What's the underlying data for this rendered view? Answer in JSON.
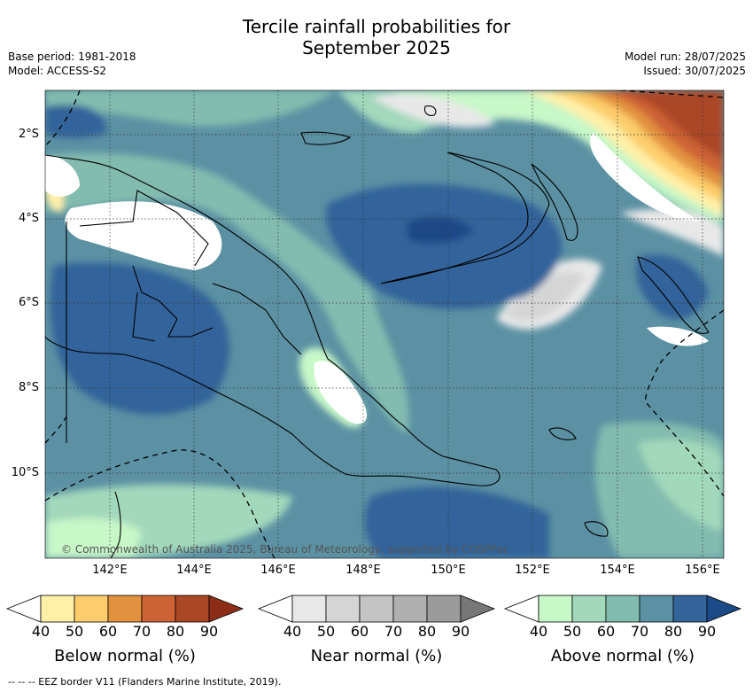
{
  "title_line1": "Tercile rainfall probabilities for",
  "title_line2": "September 2025",
  "base_period": "Base period: 1981-2018",
  "model": "Model: ACCESS-S2",
  "model_run": "Model run: 28/07/2025",
  "issued": "Issued: 30/07/2025",
  "copyright": "© Commonwealth of Australia 2025, Bureau of Meteorology, supported by COSPPac",
  "footer": "--  --  -- EEZ border V11 (Flanders Marine Institute, 2019).",
  "lat_labels": [
    "2°S",
    "4°S",
    "6°S",
    "8°S",
    "10°S"
  ],
  "lon_labels": [
    "142°E",
    "144°E",
    "146°E",
    "148°E",
    "150°E",
    "152°E",
    "154°E",
    "156°E"
  ],
  "colorbars": [
    {
      "label": "Below normal (%)",
      "ticks": [
        "40",
        "50",
        "60",
        "70",
        "80",
        "90"
      ],
      "colors": [
        "#fff0a8",
        "#fccd6a",
        "#e2923f",
        "#cd6234",
        "#aa4725",
        "#8c2e17"
      ]
    },
    {
      "label": "Near normal (%)",
      "ticks": [
        "40",
        "50",
        "60",
        "70",
        "80",
        "90"
      ],
      "colors": [
        "#e8e8e8",
        "#d5d5d5",
        "#c4c4c4",
        "#b0b0b0",
        "#9b9b9b",
        "#777777"
      ]
    },
    {
      "label": "Above normal (%)",
      "ticks": [
        "40",
        "50",
        "60",
        "70",
        "80",
        "90"
      ],
      "colors": [
        "#c8f7c8",
        "#a2d8bb",
        "#82bcaf",
        "#5b91a3",
        "#33649a",
        "#1b4a86"
      ]
    }
  ]
}
